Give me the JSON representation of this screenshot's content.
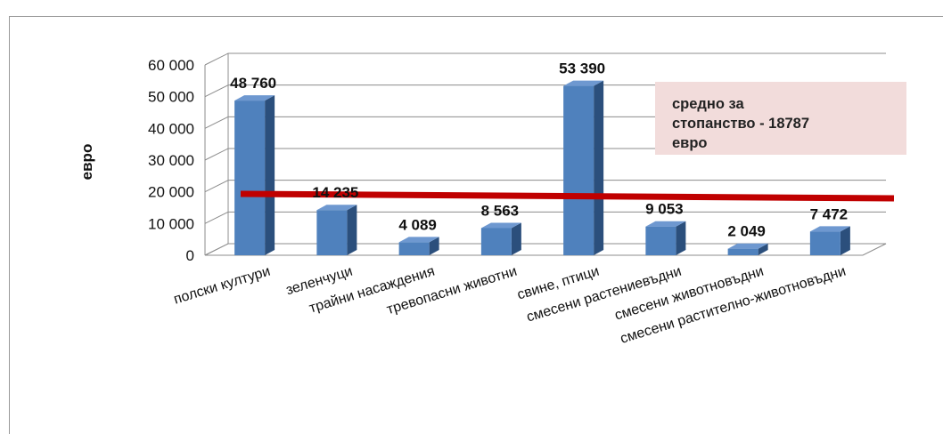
{
  "chart_data": {
    "type": "bar",
    "title": "",
    "xlabel": "",
    "ylabel": "евро",
    "ylim": [
      0,
      60000
    ],
    "yticks": [
      "60 000",
      "50 000",
      "40 000",
      "30 000",
      "20 000",
      "10 000",
      "0"
    ],
    "categories": [
      "полски култури",
      "зеленчуци",
      "трайни насаждения",
      "тревопасни животни",
      "свине, птици",
      "смесени растениевъдни",
      "смесени животновъдни",
      "смесени растително-животновъдни"
    ],
    "values": [
      48760,
      14235,
      4089,
      8563,
      53390,
      9053,
      2049,
      7472
    ],
    "value_labels": [
      "48 760",
      "14 235",
      "4 089",
      "8 563",
      "53 390",
      "9 053",
      "2 049",
      "7 472"
    ],
    "reference_line": {
      "value": 18787,
      "label": "средно за\nстопанство  - 18787\nевро",
      "color": "#c00000"
    },
    "bar_color": "#4f81bd",
    "bar_side_color": "#2b4f7c",
    "bar_top_color": "#6e98d0",
    "grid": true,
    "legend": "none"
  }
}
